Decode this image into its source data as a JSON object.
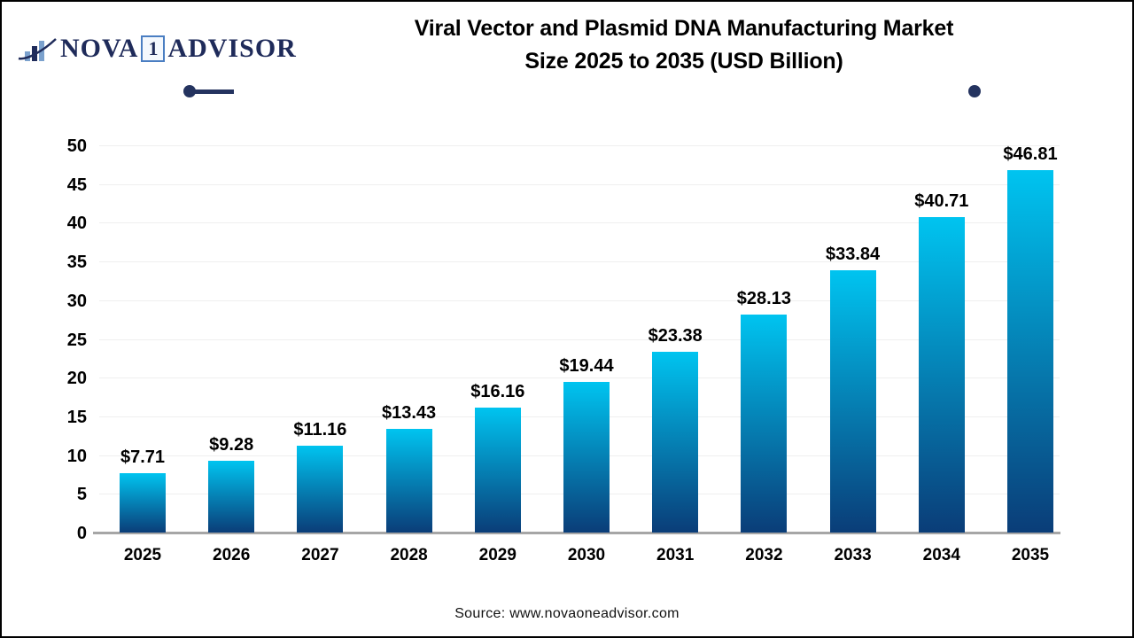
{
  "logo": {
    "nova": "NOVA",
    "one": "1",
    "advisor": "ADVISOR",
    "navy": "#1f2b5a",
    "light_blue": "#7ba1cd"
  },
  "title": {
    "line1": "Viral Vector and Plasmid DNA Manufacturing Market",
    "line2": "Size 2025 to 2035 (USD Billion)"
  },
  "source": "Source: www.novaoneadvisor.com",
  "chart_data": {
    "type": "bar",
    "title": "Viral Vector and Plasmid DNA Manufacturing Market Size 2025 to 2035 (USD Billion)",
    "categories": [
      "2025",
      "2026",
      "2027",
      "2028",
      "2029",
      "2030",
      "2031",
      "2032",
      "2033",
      "2034",
      "2035"
    ],
    "values": [
      7.71,
      9.28,
      11.16,
      13.43,
      16.16,
      19.44,
      23.38,
      28.13,
      33.84,
      40.71,
      46.81
    ],
    "value_labels": [
      "$7.71",
      "$9.28",
      "$11.16",
      "$13.43",
      "$16.16",
      "$19.44",
      "$23.38",
      "$28.13",
      "$33.84",
      "$40.71",
      "$46.81"
    ],
    "xlabel": "",
    "ylabel": "",
    "ylim": [
      0,
      50
    ],
    "yticks": [
      0,
      5,
      10,
      15,
      20,
      25,
      30,
      35,
      40,
      45,
      50
    ],
    "grid": true,
    "legend": "none",
    "bar_gradient_top": "#00c4f0",
    "bar_gradient_bottom": "#0a3d78",
    "gridline_color": "#efefef",
    "baseline_color": "#a6a6a6"
  }
}
